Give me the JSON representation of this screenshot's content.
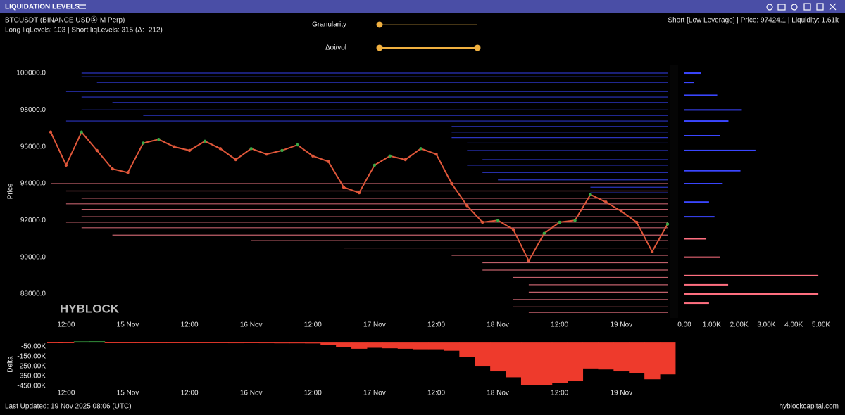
{
  "header": {
    "title": "LIQUIDATION LEVELS"
  },
  "info": {
    "symbol": "BTCUSDT (BINANCE USDⓈ-M Perp)",
    "levels": "Long liqLevels: 103 | Short liqLevels: 315 (Δ: -212)",
    "hover": "Short [Low Leverage] | Price: 97424.1 | Liquidity: 1.61k"
  },
  "controls": [
    {
      "label": "Granularity"
    },
    {
      "label": "Δoi/vol"
    }
  ],
  "watermark": "HYBLOCK",
  "footer": {
    "updated": "Last Updated: 19 Nov 2025 08:06 (UTC)",
    "site": "hyblockcapital.com"
  },
  "chart_data": [
    {
      "type": "line",
      "ylabel": "Price",
      "color": "#e0573a",
      "categories": [
        null,
        "12:00",
        null,
        null,
        null,
        "15 Nov",
        null,
        null,
        null,
        "12:00",
        null,
        null,
        null,
        "16 Nov",
        null,
        null,
        null,
        "12:00",
        null,
        null,
        null,
        "17 Nov",
        null,
        null,
        null,
        "12:00",
        null,
        null,
        null,
        "18 Nov",
        null,
        null,
        null,
        "12:00",
        null,
        null,
        null,
        "19 Nov",
        null,
        null,
        null
      ],
      "values": [
        96800,
        95000,
        96800,
        95800,
        94800,
        94600,
        96200,
        96400,
        96000,
        95800,
        96300,
        95900,
        95300,
        95900,
        95600,
        95800,
        96100,
        95500,
        95200,
        93800,
        93500,
        95000,
        95500,
        95300,
        95900,
        95600,
        94000,
        92800,
        91900,
        92000,
        91500,
        89800,
        91300,
        91900,
        92000,
        93400,
        93000,
        92500,
        91900,
        90300,
        91800
      ],
      "ylim": [
        86700,
        100460
      ],
      "yticks": [
        {
          "value": 88000,
          "label": "88000.0"
        },
        {
          "value": 90000,
          "label": "90000.0"
        },
        {
          "value": 92000,
          "label": "92000.0"
        },
        {
          "value": 94000,
          "label": "94000.0"
        },
        {
          "value": 96000,
          "label": "96000.0"
        },
        {
          "value": 98000,
          "label": "98000.0"
        },
        {
          "value": 100000,
          "label": "100000.0"
        }
      ],
      "short_levels": {
        "color": "#3a46ff",
        "prices": [
          100000,
          99800,
          99500,
          99000,
          98700,
          98400,
          98000,
          97700,
          97400,
          97100,
          96800,
          96500,
          96200,
          95800,
          95300,
          95000,
          94600,
          94200,
          93800,
          93500
        ],
        "starts": [
          2,
          2,
          3,
          1,
          2,
          4,
          2,
          6,
          1,
          26,
          26,
          26,
          27,
          27,
          28,
          27,
          28,
          29,
          35,
          35
        ]
      },
      "long_levels": {
        "color": "#ff7f8e",
        "prices": [
          94000,
          93600,
          93200,
          92900,
          92600,
          92200,
          91900,
          91600,
          91200,
          90900,
          90500,
          90100,
          89700,
          89300,
          88900,
          88500,
          88100,
          87700,
          87300,
          87000
        ],
        "starts": [
          0,
          1,
          2,
          1,
          2,
          2,
          1,
          2,
          4,
          13,
          19,
          26,
          28,
          28,
          30,
          31,
          31,
          30,
          30,
          31
        ]
      }
    },
    {
      "type": "bar",
      "xlim": [
        0,
        5000
      ],
      "xticks": [
        {
          "value": 0,
          "label": "0.00"
        },
        {
          "value": 1000,
          "label": "1.00K"
        },
        {
          "value": 2000,
          "label": "2.00K"
        },
        {
          "value": 3000,
          "label": "3.00K"
        },
        {
          "value": 4000,
          "label": "4.00K"
        },
        {
          "value": 5000,
          "label": "5.00K"
        }
      ],
      "series": [
        {
          "color": "#3a46ff",
          "prices": [
            100000,
            99500,
            98800,
            98000,
            97400,
            96600,
            95800,
            94700,
            94000,
            93000,
            92200
          ],
          "values": [
            600,
            350,
            1200,
            2100,
            1610,
            1300,
            2600,
            2050,
            1400,
            900,
            1100
          ]
        },
        {
          "color": "#ff6f80",
          "prices": [
            91000,
            90000,
            89000,
            88500,
            88000,
            87500
          ],
          "values": [
            800,
            1300,
            4900,
            1600,
            4900,
            900
          ]
        }
      ]
    },
    {
      "type": "area",
      "ylabel": "Delta",
      "color": "#ee3a2c",
      "positive_color": "#3aa845",
      "values": [
        -8000,
        -12000,
        5000,
        6000,
        -9000,
        -10000,
        -11000,
        -12000,
        -12000,
        -13000,
        -12000,
        -13000,
        -14000,
        -13000,
        -14000,
        -15000,
        -15000,
        -16000,
        -30000,
        -55000,
        -70000,
        -60000,
        -65000,
        -70000,
        -75000,
        -75000,
        -90000,
        -150000,
        -250000,
        -300000,
        -360000,
        -440000,
        -440000,
        -420000,
        -400000,
        -270000,
        -280000,
        -300000,
        -320000,
        -380000,
        -330000
      ],
      "ylim": [
        -500000,
        15000
      ],
      "yticks": [
        {
          "value": -450000,
          "label": "-450.00K"
        },
        {
          "value": -350000,
          "label": "-350.00K"
        },
        {
          "value": -250000,
          "label": "-250.00K"
        },
        {
          "value": -150000,
          "label": "-150.00K"
        },
        {
          "value": -50000,
          "label": "-50.00K"
        }
      ]
    }
  ]
}
